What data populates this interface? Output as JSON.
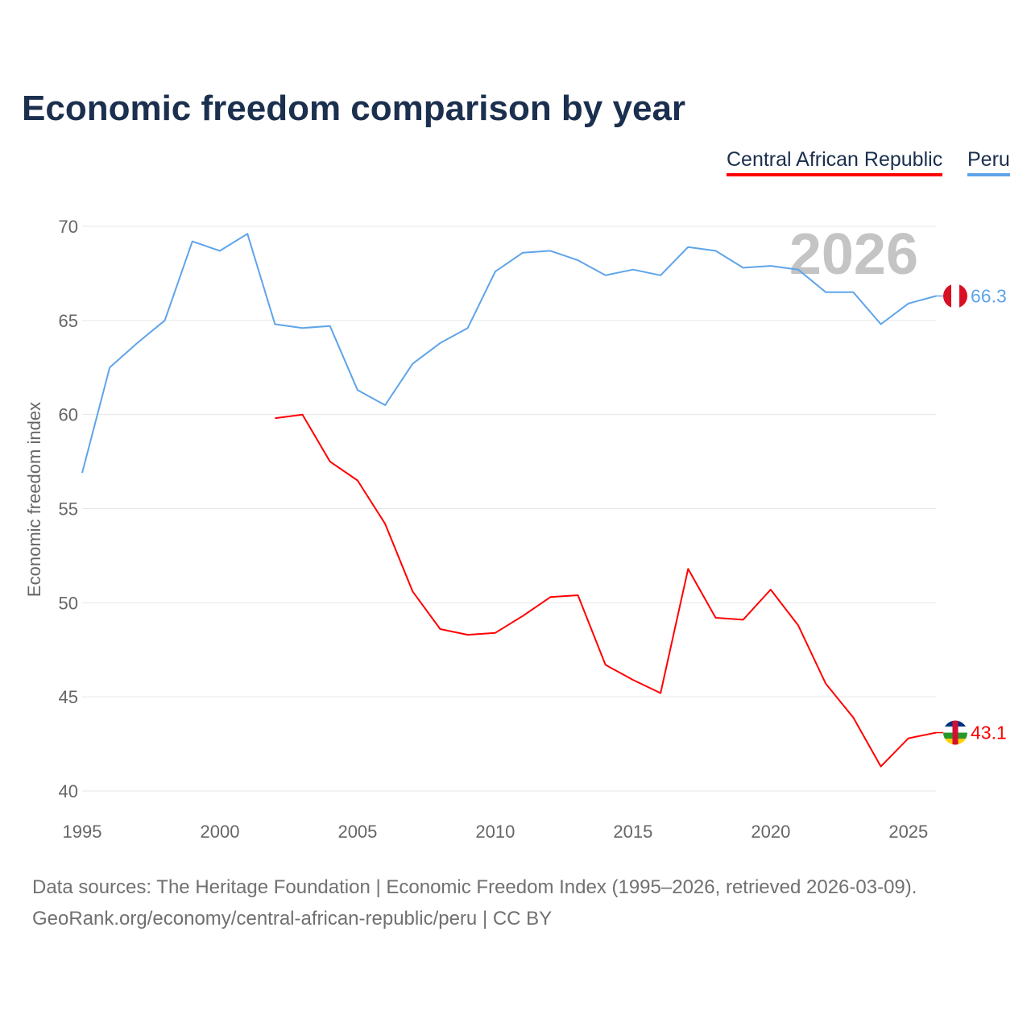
{
  "title": "Economic freedom comparison by year",
  "footer": {
    "line1": "Data sources: The Heritage Foundation | Economic Freedom Index (1995–2026, retrieved 2026-03-09).",
    "line2": "GeoRank.org/economy/central-african-republic/peru | CC BY"
  },
  "chart_data": {
    "type": "line",
    "title": "Economic freedom comparison by year",
    "xlabel": "",
    "ylabel": "Economic freedom index",
    "xlim": [
      1995,
      2026
    ],
    "ylim": [
      40,
      70
    ],
    "xticks": [
      "1995",
      "2000",
      "2005",
      "2010",
      "2015",
      "2020",
      "2025"
    ],
    "yticks": [
      "40",
      "45",
      "50",
      "55",
      "60",
      "65",
      "70"
    ],
    "grid": true,
    "legend_position": "top-right",
    "year_watermark": "2026",
    "x": [
      1995,
      1996,
      1997,
      1998,
      1999,
      2000,
      2001,
      2002,
      2003,
      2004,
      2005,
      2006,
      2007,
      2008,
      2009,
      2010,
      2011,
      2012,
      2013,
      2014,
      2015,
      2016,
      2017,
      2018,
      2019,
      2020,
      2021,
      2022,
      2023,
      2024,
      2025,
      2026
    ],
    "series": [
      {
        "name": "Central African Republic",
        "color": "#ff0000",
        "end_label": "43.1",
        "flag": "central-african-republic-flag",
        "values": [
          null,
          null,
          null,
          null,
          null,
          null,
          null,
          59.8,
          60.0,
          57.5,
          56.5,
          54.2,
          50.6,
          48.6,
          48.3,
          48.4,
          49.3,
          50.3,
          50.4,
          46.7,
          45.9,
          45.2,
          51.8,
          49.2,
          49.1,
          50.7,
          48.8,
          45.7,
          43.9,
          41.3,
          42.8,
          43.1
        ]
      },
      {
        "name": "Peru",
        "color": "#5fa4ea",
        "end_label": "66.3",
        "flag": "peru-flag",
        "values": [
          56.9,
          62.5,
          63.8,
          65.0,
          69.2,
          68.7,
          69.6,
          64.8,
          64.6,
          64.7,
          61.3,
          60.5,
          62.7,
          63.8,
          64.6,
          67.6,
          68.6,
          68.7,
          68.2,
          67.4,
          67.7,
          67.4,
          68.9,
          68.7,
          67.8,
          67.9,
          67.7,
          66.5,
          66.5,
          64.8,
          65.9,
          66.3
        ]
      }
    ]
  }
}
